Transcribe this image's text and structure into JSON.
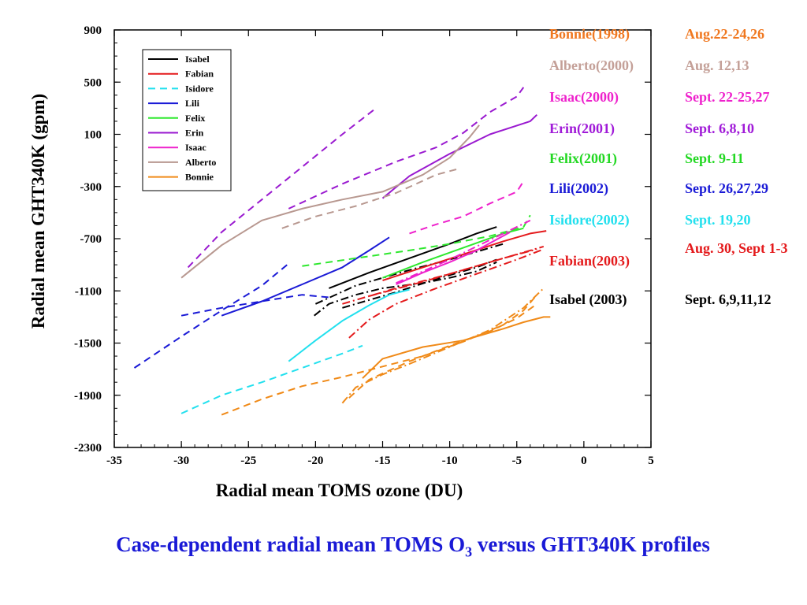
{
  "chart_data": {
    "type": "line",
    "title": "",
    "xlabel": "Radial mean TOMS ozone (DU)",
    "ylabel": "Radial mean GHT340K (gpm)",
    "xlim": [
      -35,
      5
    ],
    "ylim": [
      -2300,
      900
    ],
    "xticks": [
      "-35",
      "-30",
      "-25",
      "-20",
      "-15",
      "-10",
      "-5",
      "0",
      "5"
    ],
    "yticks": [
      "900",
      "500",
      "100",
      "-300",
      "-700",
      "-1100",
      "-1500",
      "-1900",
      "-2300"
    ],
    "grid": false,
    "legend_position": "top-left",
    "series": [
      {
        "name": "Isabel",
        "color": "#000000",
        "dash": "solid",
        "lines": [
          {
            "style": "solid",
            "points": [
              [
                -19,
                -1080
              ],
              [
                -16,
                -960
              ],
              [
                -13,
                -850
              ],
              [
                -10,
                -740
              ],
              [
                -8,
                -660
              ],
              [
                -6.5,
                -610
              ]
            ]
          },
          {
            "style": "dashdot",
            "points": [
              [
                -20,
                -1200
              ],
              [
                -17,
                -1060
              ],
              [
                -13,
                -940
              ],
              [
                -10,
                -860
              ],
              [
                -8,
                -800
              ],
              [
                -6,
                -740
              ]
            ]
          },
          {
            "style": "dashdot",
            "points": [
              [
                -18,
                -1230
              ],
              [
                -14,
                -1110
              ],
              [
                -11,
                -1010
              ],
              [
                -8,
                -920
              ],
              [
                -6.5,
                -860
              ]
            ]
          },
          {
            "style": "dashdot",
            "points": [
              [
                -20.1,
                -1290
              ],
              [
                -19,
                -1200
              ],
              [
                -17,
                -1130
              ],
              [
                -15,
                -1080
              ],
              [
                -12,
                -1040
              ],
              [
                -10,
                -1000
              ],
              [
                -8,
                -950
              ],
              [
                -6.5,
                -880
              ]
            ]
          }
        ]
      },
      {
        "name": "Fabian",
        "color": "#e41a1c",
        "dash": "solid",
        "lines": [
          {
            "style": "solid",
            "points": [
              [
                -15,
                -1020
              ],
              [
                -12,
                -920
              ],
              [
                -9,
                -820
              ],
              [
                -6,
                -720
              ],
              [
                -4,
                -660
              ],
              [
                -2.8,
                -640
              ]
            ]
          },
          {
            "style": "dashdot",
            "points": [
              [
                -18,
                -1200
              ],
              [
                -14,
                -1080
              ],
              [
                -10,
                -970
              ],
              [
                -7,
                -880
              ],
              [
                -4,
                -790
              ],
              [
                -3,
                -760
              ]
            ]
          },
          {
            "style": "dashdot",
            "points": [
              [
                -16,
                -1140
              ],
              [
                -12,
                -1030
              ],
              [
                -9,
                -940
              ],
              [
                -6,
                -850
              ],
              [
                -3.5,
                -780
              ]
            ]
          },
          {
            "style": "dashdot",
            "points": [
              [
                -17.5,
                -1460
              ],
              [
                -16,
                -1320
              ],
              [
                -14,
                -1200
              ],
              [
                -11,
                -1080
              ],
              [
                -8,
                -970
              ],
              [
                -5,
                -860
              ],
              [
                -3,
                -780
              ]
            ]
          }
        ]
      },
      {
        "name": "Isidore",
        "color": "#22e0ee",
        "dash": "dash",
        "lines": [
          {
            "style": "solid",
            "points": [
              [
                -22,
                -1640
              ],
              [
                -20,
                -1480
              ],
              [
                -18,
                -1330
              ],
              [
                -16,
                -1210
              ],
              [
                -14.5,
                -1130
              ],
              [
                -13,
                -1090
              ]
            ]
          },
          {
            "style": "dash",
            "points": [
              [
                -30,
                -2040
              ],
              [
                -27,
                -1900
              ],
              [
                -24,
                -1800
              ],
              [
                -21,
                -1690
              ],
              [
                -18,
                -1580
              ],
              [
                -16.5,
                -1520
              ]
            ]
          }
        ]
      },
      {
        "name": "Lili",
        "color": "#1a1ad6",
        "dash": "solid",
        "lines": [
          {
            "style": "solid",
            "points": [
              [
                -27,
                -1290
              ],
              [
                -24,
                -1180
              ],
              [
                -21,
                -1050
              ],
              [
                -18,
                -920
              ],
              [
                -16,
                -790
              ],
              [
                -14.5,
                -690
              ]
            ]
          },
          {
            "style": "dash",
            "points": [
              [
                -33.5,
                -1690
              ],
              [
                -30,
                -1450
              ],
              [
                -27,
                -1250
              ],
              [
                -24,
                -1060
              ],
              [
                -22,
                -890
              ]
            ]
          },
          {
            "style": "dash",
            "points": [
              [
                -30,
                -1290
              ],
              [
                -27,
                -1230
              ],
              [
                -24,
                -1180
              ],
              [
                -21,
                -1130
              ],
              [
                -19,
                -1150
              ]
            ]
          }
        ]
      },
      {
        "name": "Felix",
        "color": "#2ee82e",
        "dash": "solid",
        "lines": [
          {
            "style": "solid",
            "points": [
              [
                -15,
                -1000
              ],
              [
                -12,
                -880
              ],
              [
                -9,
                -770
              ],
              [
                -6,
                -660
              ],
              [
                -4.5,
                -620
              ]
            ]
          },
          {
            "style": "dash",
            "points": [
              [
                -21,
                -910
              ],
              [
                -17,
                -850
              ],
              [
                -13,
                -790
              ],
              [
                -10,
                -740
              ],
              [
                -7,
                -680
              ],
              [
                -4.5,
                -610
              ],
              [
                -4,
                -520
              ]
            ]
          }
        ]
      },
      {
        "name": "Erin",
        "color": "#9a1ad0",
        "dash": "solid",
        "lines": [
          {
            "style": "solid",
            "points": [
              [
                -15,
                -390
              ],
              [
                -13,
                -220
              ],
              [
                -10,
                -50
              ],
              [
                -7,
                100
              ],
              [
                -4,
                200
              ],
              [
                -3.5,
                250
              ]
            ]
          },
          {
            "style": "dash",
            "points": [
              [
                -29.5,
                -920
              ],
              [
                -27,
                -650
              ],
              [
                -24,
                -400
              ],
              [
                -21,
                -150
              ],
              [
                -18,
                100
              ],
              [
                -15.5,
                300
              ]
            ]
          },
          {
            "style": "dash",
            "points": [
              [
                -22,
                -470
              ],
              [
                -18,
                -280
              ],
              [
                -14,
                -110
              ],
              [
                -11,
                0
              ],
              [
                -9,
                110
              ],
              [
                -7,
                270
              ],
              [
                -5,
                390
              ],
              [
                -4.5,
                460
              ]
            ]
          }
        ]
      },
      {
        "name": "Isaac",
        "color": "#ee22cc",
        "dash": "solid",
        "lines": [
          {
            "style": "solid",
            "points": [
              [
                -14,
                -1050
              ],
              [
                -12,
                -960
              ],
              [
                -10,
                -880
              ],
              [
                -8,
                -790
              ],
              [
                -5.5,
                -650
              ]
            ]
          },
          {
            "style": "dash",
            "points": [
              [
                -13,
                -660
              ],
              [
                -11,
                -590
              ],
              [
                -9,
                -530
              ],
              [
                -7,
                -430
              ],
              [
                -5,
                -340
              ],
              [
                -4.5,
                -260
              ]
            ]
          },
          {
            "style": "dashdot",
            "points": [
              [
                -14,
                -1040
              ],
              [
                -12,
                -950
              ],
              [
                -10,
                -860
              ],
              [
                -8,
                -760
              ],
              [
                -6,
                -660
              ],
              [
                -4,
                -560
              ]
            ]
          }
        ]
      },
      {
        "name": "Alberto",
        "color": "#b89890",
        "dash": "solid",
        "lines": [
          {
            "style": "solid",
            "points": [
              [
                -30,
                -1000
              ],
              [
                -27,
                -750
              ],
              [
                -24,
                -560
              ],
              [
                -21,
                -470
              ],
              [
                -18,
                -400
              ],
              [
                -15,
                -340
              ],
              [
                -12,
                -210
              ],
              [
                -10,
                -80
              ],
              [
                -8.5,
                80
              ],
              [
                -7.8,
                170
              ]
            ]
          },
          {
            "style": "dash",
            "points": [
              [
                -22.5,
                -620
              ],
              [
                -20,
                -530
              ],
              [
                -17,
                -450
              ],
              [
                -14,
                -350
              ],
              [
                -11,
                -210
              ],
              [
                -9.2,
                -160
              ]
            ]
          }
        ]
      },
      {
        "name": "Bonnie",
        "color": "#f08a18",
        "dash": "solid",
        "lines": [
          {
            "style": "solid",
            "points": [
              [
                -16.5,
                -1770
              ],
              [
                -15,
                -1620
              ],
              [
                -12,
                -1530
              ],
              [
                -9,
                -1480
              ],
              [
                -6,
                -1390
              ],
              [
                -4.5,
                -1340
              ],
              [
                -3,
                -1300
              ],
              [
                -2.5,
                -1300
              ]
            ]
          },
          {
            "style": "dash",
            "points": [
              [
                -27,
                -2050
              ],
              [
                -24,
                -1930
              ],
              [
                -21,
                -1830
              ],
              [
                -18,
                -1760
              ],
              [
                -15,
                -1680
              ],
              [
                -12,
                -1600
              ],
              [
                -9,
                -1490
              ],
              [
                -6,
                -1360
              ],
              [
                -4.5,
                -1250
              ],
              [
                -3.5,
                -1130
              ]
            ]
          },
          {
            "style": "dashdot",
            "points": [
              [
                -18,
                -1960
              ],
              [
                -17,
                -1840
              ],
              [
                -15,
                -1740
              ],
              [
                -13,
                -1660
              ],
              [
                -10,
                -1530
              ],
              [
                -7,
                -1400
              ],
              [
                -4.5,
                -1230
              ],
              [
                -3,
                -1080
              ]
            ]
          },
          {
            "style": "dash",
            "points": [
              [
                -17.5,
                -1920
              ],
              [
                -16,
                -1780
              ],
              [
                -13,
                -1640
              ],
              [
                -10,
                -1520
              ],
              [
                -7,
                -1410
              ],
              [
                -5,
                -1310
              ],
              [
                -3.5,
                -1200
              ]
            ]
          }
        ]
      }
    ]
  },
  "cases": [
    {
      "name": "Bonnie(1998)",
      "date": "Aug.22-24,26",
      "color": "#f07820"
    },
    {
      "name": "Alberto(2000)",
      "date": "Aug. 12,13",
      "color": "#c4a098"
    },
    {
      "name": "Isaac(2000)",
      "date": "Sept. 22-25,27",
      "color": "#ee22cc"
    },
    {
      "name": "Erin(2001)",
      "date": "Sept. 6,8,10",
      "color": "#a01ad8"
    },
    {
      "name": "Felix(2001)",
      "date": "Sept. 9-11",
      "color": "#22d822"
    },
    {
      "name": "Lili(2002)",
      "date": "Sept. 26,27,29",
      "color": "#1a1ad6"
    },
    {
      "name": "Isidore(2002)",
      "date": "Sept. 19,20",
      "color": "#22e0ee"
    },
    {
      "name": "Fabian(2003)",
      "date": "Aug. 30, Sept 1-3",
      "color": "#e41a1c"
    },
    {
      "name": "Isabel (2003)",
      "date": "Sept. 6,9,11,12",
      "color": "#000000"
    }
  ],
  "footer": {
    "pre": "Case-dependent radial mean TOMS O",
    "sub": "3",
    "post": " versus GHT340K profiles",
    "color": "#1a1ad6"
  }
}
